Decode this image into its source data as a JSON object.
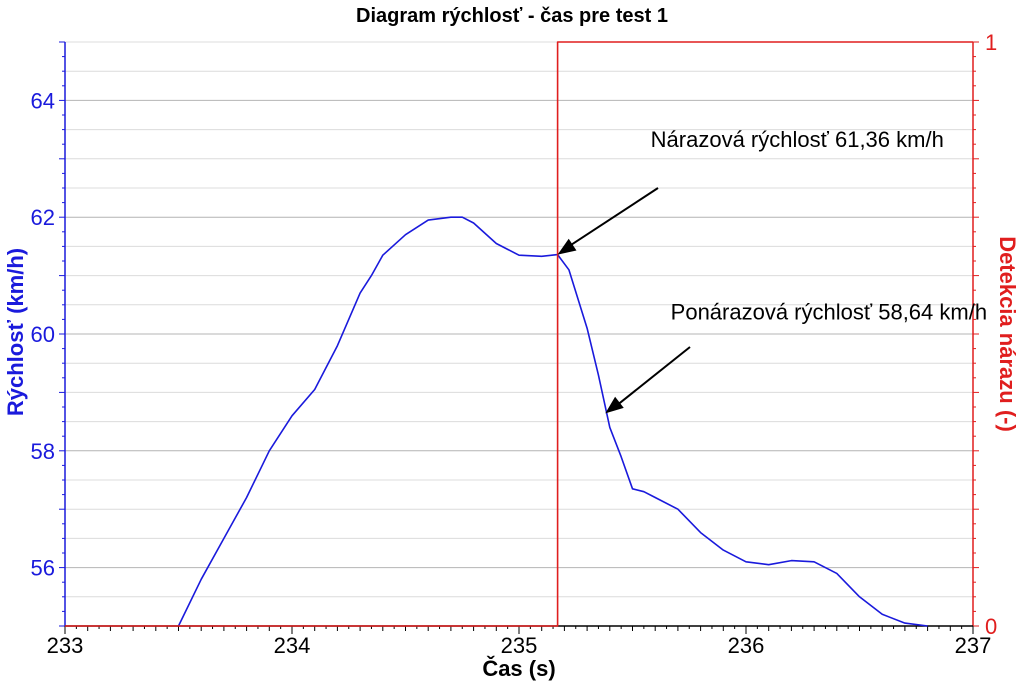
{
  "chart_data": {
    "type": "line",
    "title": "Diagram rýchlosť - čas pre test 1",
    "xlabel": "Čas (s)",
    "ylabel": "Rýchlosť (km/h)",
    "y2label": "Detekcia nárazu (-)",
    "xlim": [
      233,
      237
    ],
    "ylim": [
      55,
      65
    ],
    "y2lim": [
      0,
      1
    ],
    "x_ticks": [
      "233",
      "234",
      "235",
      "236",
      "237"
    ],
    "y_ticks": [
      "56",
      "58",
      "60",
      "62",
      "64"
    ],
    "y2_ticks": [
      "0",
      "1"
    ],
    "grid": true,
    "series": [
      {
        "axis": "left",
        "color": "#1a1adc",
        "x": [
          233.5,
          233.6,
          233.7,
          233.8,
          233.9,
          234.0,
          234.1,
          234.2,
          234.3,
          234.35,
          234.4,
          234.5,
          234.6,
          234.7,
          234.75,
          234.8,
          234.9,
          235.0,
          235.1,
          235.17,
          235.22,
          235.3,
          235.35,
          235.4,
          235.45,
          235.5,
          235.55,
          235.6,
          235.7,
          235.8,
          235.9,
          236.0,
          236.1,
          236.2,
          236.3,
          236.4,
          236.5,
          236.6,
          236.7,
          236.8
        ],
        "y": [
          55.0,
          55.8,
          56.5,
          57.2,
          58.0,
          58.6,
          59.05,
          59.8,
          60.7,
          61.0,
          61.35,
          61.7,
          61.95,
          62.0,
          62.0,
          61.9,
          61.55,
          61.35,
          61.33,
          61.36,
          61.1,
          60.1,
          59.3,
          58.4,
          57.9,
          57.35,
          57.3,
          57.2,
          57.0,
          56.6,
          56.3,
          56.1,
          56.05,
          56.12,
          56.1,
          55.9,
          55.5,
          55.2,
          55.05,
          55.0
        ]
      },
      {
        "axis": "right",
        "color": "#e01e1e",
        "x": [
          233,
          235.17,
          235.17,
          237
        ],
        "y": [
          0,
          0,
          1,
          1
        ]
      }
    ],
    "annotations": [
      {
        "text": "Nárazová rýchlosť 61,36 km/h",
        "x": 235.17,
        "y": 61.36,
        "text_x": 235.58,
        "text_y": 63.2
      },
      {
        "text": "Ponárazová rýchlosť 58,64 km/h",
        "x": 235.38,
        "y": 58.64,
        "text_x": 235.58,
        "text_y": 60.25
      }
    ]
  }
}
